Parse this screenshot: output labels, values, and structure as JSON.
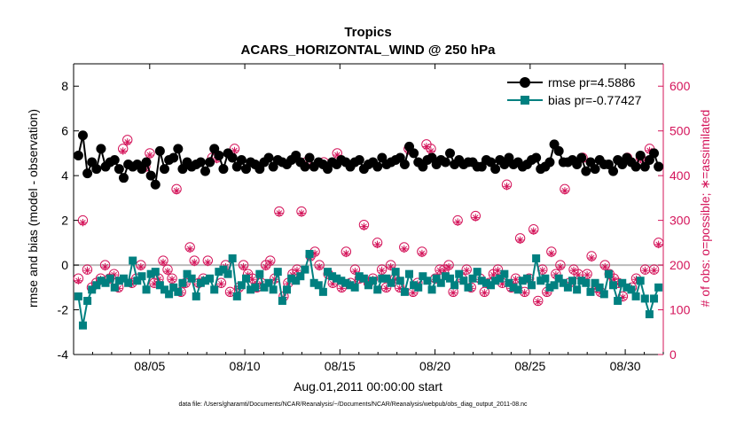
{
  "chart_data": {
    "type": "line",
    "title": "Tropics",
    "subtitle": "ACARS_HORIZONTAL_WIND @ 250 hPa",
    "xlabel": "Aug.01,2011 00:00:00 start",
    "ylabel": "rmse and bias (model - observation)",
    "y2label": "# of obs: o=possible; ∗=assimilated",
    "footnote": "data file: /Users/gharamti/Documents/NCAR/Reanalysis/~/Documents/NCAR/Reanalysis/webpub/obs_diag_output_2011-08.nc",
    "xlim": [
      1,
      32
    ],
    "ylim": [
      -4,
      9
    ],
    "y2lim": [
      0,
      650
    ],
    "x_ticks": [
      5,
      10,
      15,
      20,
      25,
      30
    ],
    "x_tick_labels": [
      "08/05",
      "08/10",
      "08/15",
      "08/20",
      "08/25",
      "08/30"
    ],
    "y_ticks": [
      -4,
      -2,
      0,
      2,
      4,
      6,
      8
    ],
    "y_tick_labels": [
      "-4",
      "-2",
      "0",
      "2",
      "4",
      "6",
      "8"
    ],
    "y2_ticks": [
      0,
      100,
      200,
      300,
      400,
      500,
      600
    ],
    "y2_tick_labels": [
      "0",
      "100",
      "200",
      "300",
      "400",
      "500",
      "600"
    ],
    "legend_position": "top-right",
    "legend": [
      "rmse pr=4.5886",
      "bias pr=-0.77427"
    ],
    "colors": {
      "rmse": "#000000",
      "bias": "#008080",
      "obs": "#d4145a",
      "zero_line": "#bbbbbb"
    },
    "series": [
      {
        "name": "rmse pr=4.5886",
        "axis": "left",
        "values": [
          4.9,
          5.8,
          4.1,
          4.6,
          4.3,
          5.2,
          4.4,
          4.6,
          4.7,
          4.3,
          3.9,
          4.5,
          4.4,
          4.5,
          4.3,
          4.6,
          4.0,
          3.6,
          5.1,
          4.3,
          4.7,
          4.8,
          5.2,
          4.3,
          4.6,
          4.4,
          4.5,
          4.6,
          4.2,
          4.6,
          5.2,
          4.9,
          4.3,
          5.0,
          4.8,
          4.4,
          4.7,
          4.3,
          4.6,
          4.5,
          4.3,
          4.6,
          4.8,
          4.4,
          4.7,
          4.6,
          4.5,
          4.7,
          4.9,
          4.6,
          4.4,
          4.8,
          4.4,
          4.6,
          4.5,
          4.3,
          4.6,
          4.5,
          4.7,
          4.6,
          4.4,
          4.6,
          4.7,
          4.3,
          4.5,
          4.6,
          4.4,
          4.8,
          4.5,
          4.6,
          4.7,
          4.8,
          4.5,
          5.3,
          5.0,
          4.6,
          4.4,
          4.7,
          4.8,
          4.5,
          4.7,
          4.6,
          5.0,
          4.5,
          4.7,
          4.5,
          4.6,
          4.6,
          4.4,
          4.4,
          4.7,
          4.6,
          4.3,
          4.7,
          4.5,
          4.8,
          4.5,
          4.6,
          4.4,
          4.5,
          4.7,
          4.8,
          4.3,
          4.4,
          4.6,
          5.4,
          5.1,
          4.6,
          4.6,
          4.7,
          4.5,
          4.8,
          4.2,
          4.6,
          4.3,
          4.7,
          4.5,
          4.5,
          4.2,
          4.7,
          4.5,
          4.8,
          4.6,
          4.4,
          4.9,
          4.4,
          4.7,
          5.0,
          4.4
        ]
      },
      {
        "name": "bias pr=-0.77427",
        "axis": "left",
        "values": [
          -1.4,
          -2.7,
          -1.6,
          -1.1,
          -0.9,
          -0.7,
          -0.8,
          -0.6,
          -1.0,
          -0.7,
          -0.6,
          -0.8,
          0.2,
          -0.7,
          -0.5,
          -1.1,
          -0.4,
          -0.3,
          -0.9,
          -1.1,
          -1.3,
          -1.0,
          -1.2,
          -0.8,
          -0.4,
          -0.6,
          -1.4,
          -0.8,
          -0.7,
          -0.6,
          -1.1,
          -0.3,
          -0.2,
          -0.4,
          0.3,
          -1.4,
          -0.9,
          -0.6,
          -1.1,
          -1.0,
          -0.4,
          -1.0,
          -0.8,
          -1.1,
          -0.3,
          -1.6,
          -1.1,
          -0.6,
          -0.7,
          -0.5,
          -0.2,
          0.5,
          -0.8,
          -0.9,
          -1.2,
          -0.3,
          -0.5,
          -0.6,
          -0.7,
          -0.8,
          -0.9,
          -1.0,
          -0.5,
          -0.6,
          -0.9,
          -0.7,
          -1.1,
          -0.6,
          -0.6,
          -0.8,
          -0.3,
          -0.7,
          -1.2,
          -0.4,
          -0.9,
          -1.0,
          -0.5,
          -0.7,
          -1.1,
          -0.6,
          -0.8,
          -0.5,
          -0.6,
          -0.9,
          -0.4,
          -0.7,
          -1.0,
          -0.6,
          -0.3,
          -0.7,
          -0.8,
          -0.9,
          -0.7,
          -0.6,
          -0.4,
          -0.8,
          -1.0,
          -1.1,
          -0.7,
          -0.6,
          -0.9,
          0.3,
          -0.7,
          -0.6,
          -1.0,
          -0.9,
          -0.6,
          -0.8,
          -1.0,
          -0.7,
          -1.1,
          -0.7,
          -0.8,
          -1.2,
          -0.8,
          -1.0,
          -1.3,
          -0.4,
          -0.9,
          -1.6,
          -0.8,
          -1.0,
          -1.1,
          -1.4,
          -0.7,
          -1.5,
          -2.2,
          -1.5,
          -1.0
        ]
      },
      {
        "name": "obs possible",
        "axis": "right",
        "marker": "circle",
        "values": [
          170,
          300,
          190,
          150,
          160,
          170,
          200,
          170,
          180,
          150,
          460,
          480,
          160,
          170,
          200,
          420,
          450,
          160,
          170,
          210,
          190,
          170,
          370,
          140,
          160,
          240,
          210,
          160,
          170,
          210,
          440,
          440,
          160,
          200,
          140,
          460,
          150,
          200,
          180,
          170,
          150,
          160,
          200,
          210,
          170,
          320,
          130,
          160,
          180,
          190,
          320,
          430,
          220,
          230,
          200,
          430,
          180,
          160,
          450,
          150,
          230,
          160,
          190,
          170,
          290,
          160,
          170,
          250,
          190,
          150,
          200,
          170,
          150,
          240,
          460,
          140,
          160,
          230,
          470,
          460,
          170,
          190,
          190,
          200,
          140,
          300,
          170,
          190,
          150,
          310,
          170,
          140,
          160,
          180,
          190,
          160,
          380,
          150,
          170,
          260,
          140,
          170,
          280,
          120,
          190,
          140,
          230,
          180,
          200,
          370,
          160,
          190,
          180,
          440,
          180,
          220,
          150,
          140,
          200,
          180,
          170,
          160,
          130,
          440,
          150,
          170,
          440,
          190,
          460,
          190,
          250
        ]
      },
      {
        "name": "obs assimilated",
        "axis": "right",
        "marker": "asterisk",
        "values": [
          165,
          295,
          188,
          148,
          158,
          168,
          196,
          168,
          178,
          148,
          455,
          475,
          158,
          166,
          196,
          416,
          446,
          158,
          168,
          206,
          186,
          168,
          366,
          138,
          158,
          236,
          206,
          158,
          168,
          206,
          436,
          436,
          158,
          196,
          138,
          456,
          148,
          196,
          178,
          168,
          148,
          158,
          196,
          206,
          168,
          316,
          128,
          158,
          178,
          188,
          316,
          426,
          216,
          226,
          196,
          426,
          178,
          158,
          446,
          148,
          226,
          158,
          186,
          168,
          286,
          158,
          168,
          246,
          188,
          148,
          196,
          168,
          148,
          236,
          455,
          138,
          158,
          226,
          465,
          455,
          168,
          188,
          188,
          196,
          138,
          296,
          168,
          188,
          148,
          306,
          168,
          138,
          158,
          178,
          188,
          158,
          376,
          148,
          168,
          256,
          138,
          168,
          276,
          118,
          188,
          138,
          226,
          178,
          196,
          366,
          158,
          188,
          178,
          436,
          178,
          216,
          148,
          138,
          196,
          178,
          168,
          158,
          128,
          436,
          148,
          168,
          436,
          188,
          456,
          188,
          246
        ]
      }
    ]
  }
}
